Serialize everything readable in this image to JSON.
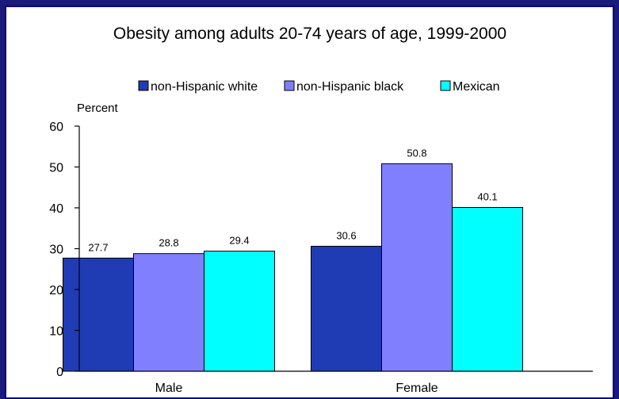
{
  "chart_data": {
    "type": "bar",
    "title": "Obesity among adults 20-74 years of age, 1999-2000",
    "ylabel": "Percent",
    "xlabel": "",
    "categories": [
      "Male",
      "Female"
    ],
    "ylim": [
      0,
      60
    ],
    "yticks": [
      0,
      10,
      20,
      30,
      40,
      50,
      60
    ],
    "grid": false,
    "legend_position": "top",
    "series": [
      {
        "name": "non-Hispanic white",
        "color": "#1f3cb4",
        "values": [
          27.7,
          30.6
        ]
      },
      {
        "name": "non-Hispanic black",
        "color": "#8080ff",
        "values": [
          28.8,
          50.8
        ]
      },
      {
        "name": "Mexican",
        "color": "#00ffff",
        "values": [
          29.4,
          40.1
        ]
      }
    ],
    "data_labels": [
      [
        "27.7",
        "28.8",
        "29.4"
      ],
      [
        "30.6",
        "50.8",
        "40.1"
      ]
    ]
  },
  "colors": {
    "frame": "#1a1a7a",
    "background": "#ffffff"
  }
}
